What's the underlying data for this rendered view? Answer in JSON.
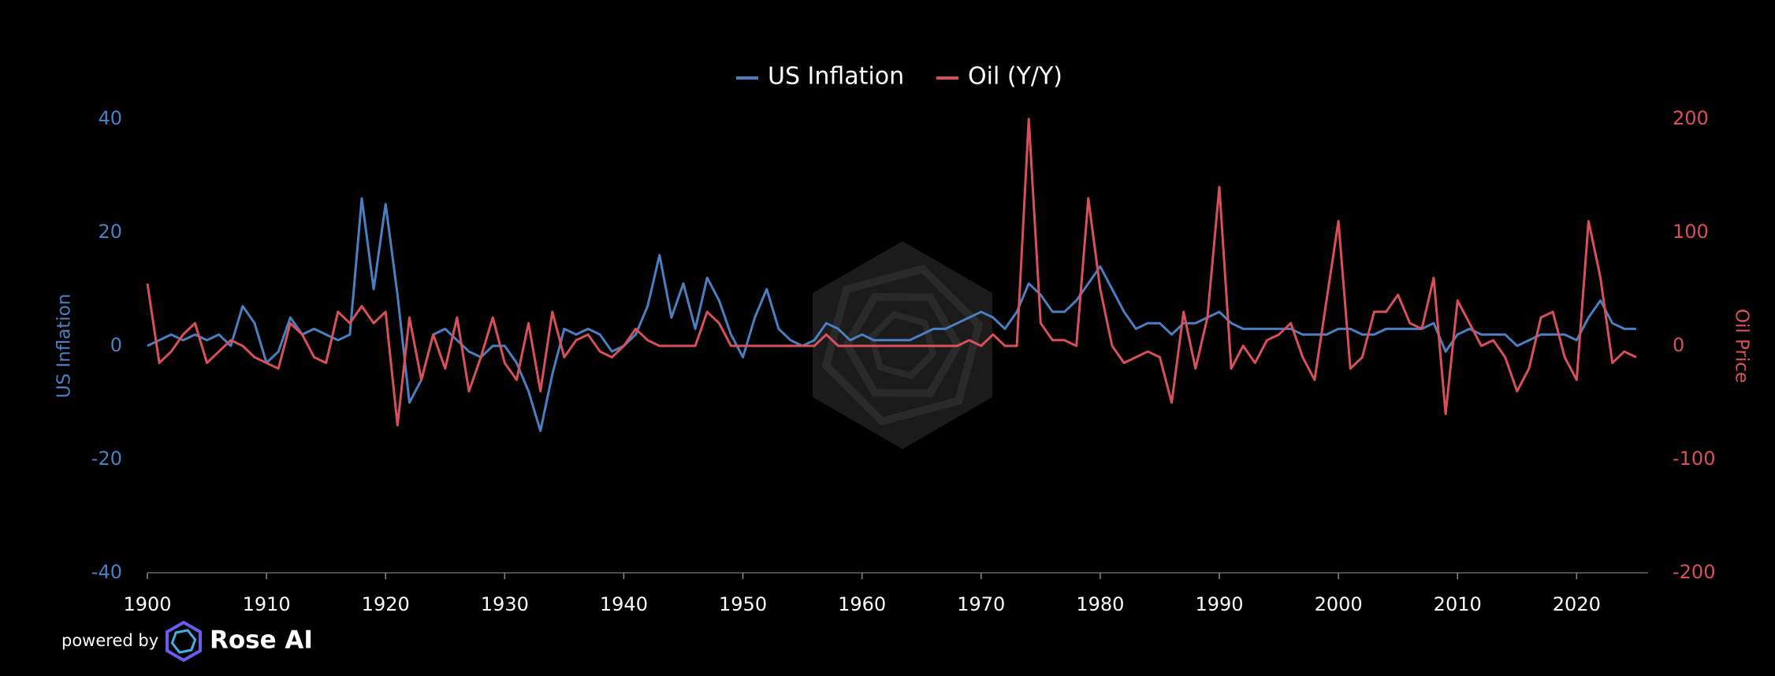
{
  "chart_data": {
    "type": "line",
    "x": [
      1900,
      1901,
      1902,
      1903,
      1904,
      1905,
      1906,
      1907,
      1908,
      1909,
      1910,
      1911,
      1912,
      1913,
      1914,
      1915,
      1916,
      1917,
      1918,
      1919,
      1920,
      1921,
      1922,
      1923,
      1924,
      1925,
      1926,
      1927,
      1928,
      1929,
      1930,
      1931,
      1932,
      1933,
      1934,
      1935,
      1936,
      1937,
      1938,
      1939,
      1940,
      1941,
      1942,
      1943,
      1944,
      1945,
      1946,
      1947,
      1948,
      1949,
      1950,
      1951,
      1952,
      1953,
      1954,
      1955,
      1956,
      1957,
      1958,
      1959,
      1960,
      1961,
      1962,
      1963,
      1964,
      1965,
      1966,
      1967,
      1968,
      1969,
      1970,
      1971,
      1972,
      1973,
      1974,
      1975,
      1976,
      1977,
      1978,
      1979,
      1980,
      1981,
      1982,
      1983,
      1984,
      1985,
      1986,
      1987,
      1988,
      1989,
      1990,
      1991,
      1992,
      1993,
      1994,
      1995,
      1996,
      1997,
      1998,
      1999,
      2000,
      2001,
      2002,
      2003,
      2004,
      2005,
      2006,
      2007,
      2008,
      2009,
      2010,
      2011,
      2012,
      2013,
      2014,
      2015,
      2016,
      2017,
      2018,
      2019,
      2020,
      2021,
      2022,
      2023,
      2024,
      2025
    ],
    "series": [
      {
        "name": "US Inflation",
        "color": "#4a7fc1",
        "axis": "y",
        "values": [
          0,
          1,
          2,
          1,
          2,
          1,
          2,
          0,
          7,
          4,
          -3,
          -1,
          5,
          2,
          3,
          2,
          1,
          2,
          26,
          10,
          25,
          9,
          -10,
          -6,
          2,
          3,
          1,
          -1,
          -2,
          0,
          0,
          -3,
          -8,
          -15,
          -5,
          3,
          2,
          3,
          2,
          -1,
          0,
          2,
          7,
          16,
          5,
          11,
          3,
          12,
          8,
          2,
          -2,
          5,
          10,
          3,
          1,
          0,
          1,
          4,
          3,
          1,
          2,
          1,
          1,
          1,
          1,
          2,
          3,
          3,
          4,
          5,
          6,
          5,
          3,
          6,
          11,
          9,
          6,
          6,
          8,
          11,
          14,
          10,
          6,
          3,
          4,
          4,
          2,
          4,
          4,
          5,
          6,
          4,
          3,
          3,
          3,
          3,
          3,
          2,
          2,
          2,
          3,
          3,
          2,
          2,
          3,
          3,
          3,
          3,
          4,
          -1,
          2,
          3,
          2,
          2,
          2,
          0,
          1,
          2,
          2,
          2,
          1,
          5,
          8,
          4,
          3,
          3
        ]
      },
      {
        "name": "Oil (Y/Y)",
        "color": "#d9505a",
        "axis": "y2",
        "values": [
          55,
          -15,
          -5,
          10,
          20,
          -15,
          -5,
          5,
          0,
          -10,
          -15,
          -20,
          20,
          10,
          -10,
          -15,
          30,
          20,
          35,
          20,
          30,
          -70,
          25,
          -30,
          10,
          -20,
          25,
          -40,
          -10,
          25,
          -15,
          -30,
          20,
          -40,
          30,
          -10,
          5,
          10,
          -5,
          -10,
          0,
          15,
          5,
          0,
          0,
          0,
          0,
          30,
          20,
          0,
          0,
          0,
          0,
          0,
          0,
          0,
          0,
          10,
          0,
          0,
          0,
          0,
          0,
          0,
          0,
          0,
          0,
          0,
          0,
          5,
          0,
          10,
          0,
          0,
          200,
          20,
          5,
          5,
          0,
          130,
          50,
          0,
          -15,
          -10,
          -5,
          -10,
          -50,
          30,
          -20,
          25,
          140,
          -20,
          0,
          -15,
          5,
          10,
          20,
          -10,
          -30,
          40,
          110,
          -20,
          -10,
          30,
          30,
          45,
          20,
          15,
          60,
          -60,
          40,
          20,
          0,
          5,
          -10,
          -40,
          -20,
          25,
          30,
          -10,
          -30,
          110,
          60,
          -15,
          -5,
          -10
        ]
      }
    ],
    "ylabel": "US Inflation",
    "y2label": "Oil Price",
    "xlim": [
      1900,
      2026
    ],
    "xticks": [
      1900,
      1910,
      1920,
      1930,
      1940,
      1950,
      1960,
      1970,
      1980,
      1990,
      2000,
      2010,
      2020
    ],
    "ylim": [
      -40,
      40
    ],
    "yticks": [
      -40,
      -20,
      0,
      20,
      40
    ],
    "y2lim": [
      -200,
      200
    ],
    "y2ticks": [
      -200,
      -100,
      0,
      100,
      200
    ],
    "legend": "top",
    "grid": false
  },
  "branding": {
    "prefix": "powered by",
    "name": "Rose AI"
  }
}
